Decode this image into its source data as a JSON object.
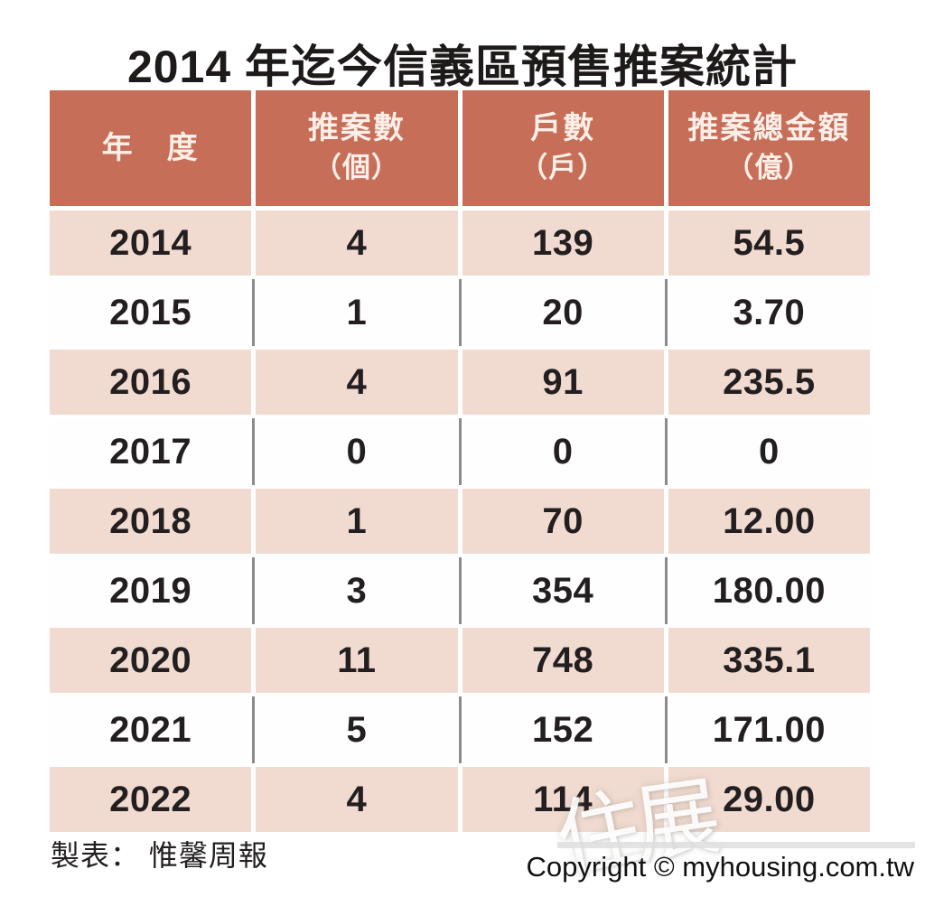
{
  "title": "2014 年迄今信義區預售推案統計",
  "table": {
    "headers": [
      {
        "line1": "年　度",
        "line2": ""
      },
      {
        "line1": "推案數",
        "line2": "（個）"
      },
      {
        "line1": "戶數",
        "line2": "（戶）"
      },
      {
        "line1": "推案總金額",
        "line2": "（億）"
      }
    ],
    "rows": [
      {
        "year": "2014",
        "projects": "4",
        "units": "139",
        "amount": "54.5"
      },
      {
        "year": "2015",
        "projects": "1",
        "units": "20",
        "amount": "3.70"
      },
      {
        "year": "2016",
        "projects": "4",
        "units": "91",
        "amount": "235.5"
      },
      {
        "year": "2017",
        "projects": "0",
        "units": "0",
        "amount": "0"
      },
      {
        "year": "2018",
        "projects": "1",
        "units": "70",
        "amount": "12.00"
      },
      {
        "year": "2019",
        "projects": "3",
        "units": "354",
        "amount": "180.00"
      },
      {
        "year": "2020",
        "projects": "11",
        "units": "748",
        "amount": "335.1"
      },
      {
        "year": "2021",
        "projects": "5",
        "units": "152",
        "amount": "171.00"
      },
      {
        "year": "2022",
        "projects": "4",
        "units": "114",
        "amount": "29.00"
      }
    ]
  },
  "footer": {
    "source": "製表： 惟馨周報",
    "copyright": "Copyright © myhousing.com.tw"
  },
  "watermark": {
    "char1": "住",
    "char2": "展"
  },
  "colors": {
    "header_bg": "#c76e58",
    "header_text": "#fcefe8",
    "row_pink": "#f1dbd0",
    "row_white": "#fefefe",
    "divider_gray": "#8b8b8b",
    "body_text": "#231f20"
  },
  "chart_data": {
    "type": "table",
    "title": "2014 年迄今信義區預售推案統計",
    "columns": [
      "年度",
      "推案數（個）",
      "戶數（戶）",
      "推案總金額（億）"
    ],
    "rows": [
      [
        "2014",
        "4",
        "139",
        "54.5"
      ],
      [
        "2015",
        "1",
        "20",
        "3.70"
      ],
      [
        "2016",
        "4",
        "91",
        "235.5"
      ],
      [
        "2017",
        "0",
        "0",
        "0"
      ],
      [
        "2018",
        "1",
        "70",
        "12.00"
      ],
      [
        "2019",
        "3",
        "354",
        "180.00"
      ],
      [
        "2020",
        "11",
        "748",
        "335.1"
      ],
      [
        "2021",
        "5",
        "152",
        "171.00"
      ],
      [
        "2022",
        "4",
        "114",
        "29.00"
      ]
    ],
    "source": "惟馨周報"
  }
}
